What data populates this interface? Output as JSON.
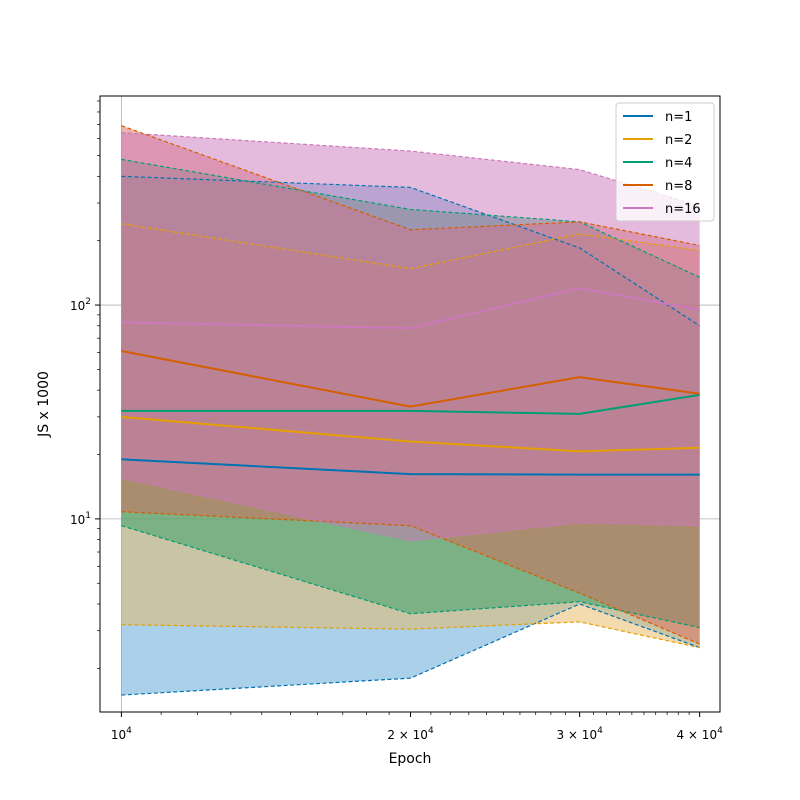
{
  "chart_data": {
    "type": "line",
    "xlabel": "Epoch",
    "ylabel": "JS x 1000",
    "x_scale": "log",
    "y_scale": "log",
    "xlim": [
      9500,
      42000
    ],
    "ylim": [
      1.25,
      950
    ],
    "grid": true,
    "legend_position": "top-right",
    "x": [
      10000,
      20000,
      30000,
      40000
    ],
    "x_ticks": [
      {
        "value": 10000,
        "base": "10",
        "exp": "4"
      },
      {
        "value": 20000,
        "base": "2 × 10",
        "exp": "4"
      },
      {
        "value": 30000,
        "base": "3 × 10",
        "exp": "4"
      },
      {
        "value": 40000,
        "base": "4 × 10",
        "exp": "4"
      }
    ],
    "y_ticks": [
      {
        "value": 10,
        "base": "10",
        "exp": "1"
      },
      {
        "value": 100,
        "base": "10",
        "exp": "2"
      }
    ],
    "series": [
      {
        "name": "n=1",
        "color": "#0072b2",
        "fill_color": "#56a3d4",
        "mean": [
          19.0,
          16.2,
          16.1,
          16.1
        ],
        "upper": [
          400,
          355,
          185,
          80
        ],
        "lower": [
          1.5,
          1.8,
          4.0,
          2.5
        ]
      },
      {
        "name": "n=2",
        "color": "#e69f00",
        "fill_color": "#e8b860",
        "mean": [
          30.0,
          23.0,
          20.7,
          21.5
        ],
        "upper": [
          240,
          148,
          215,
          180
        ],
        "lower": [
          3.2,
          3.05,
          3.3,
          2.5
        ]
      },
      {
        "name": "n=4",
        "color": "#009e73",
        "fill_color": "#2e9e65",
        "mean": [
          32.0,
          32.0,
          31.0,
          38.0
        ],
        "upper": [
          480,
          280,
          245,
          135
        ],
        "lower": [
          9.3,
          3.6,
          4.1,
          3.1
        ]
      },
      {
        "name": "n=8",
        "color": "#d55e00",
        "fill_color": "#d96a5a",
        "mean": [
          61.0,
          33.5,
          46.0,
          38.5
        ],
        "upper": [
          690,
          225,
          245,
          190
        ],
        "lower": [
          10.8,
          9.3,
          4.5,
          2.6
        ]
      },
      {
        "name": "n=16",
        "color": "#cc78bc",
        "fill_color": "#cc78bc",
        "mean": [
          83.0,
          78.0,
          120.0,
          95.0
        ],
        "upper": [
          640,
          525,
          430,
          290
        ],
        "lower": [
          15.5,
          7.9,
          9.6,
          9.3
        ]
      }
    ]
  }
}
